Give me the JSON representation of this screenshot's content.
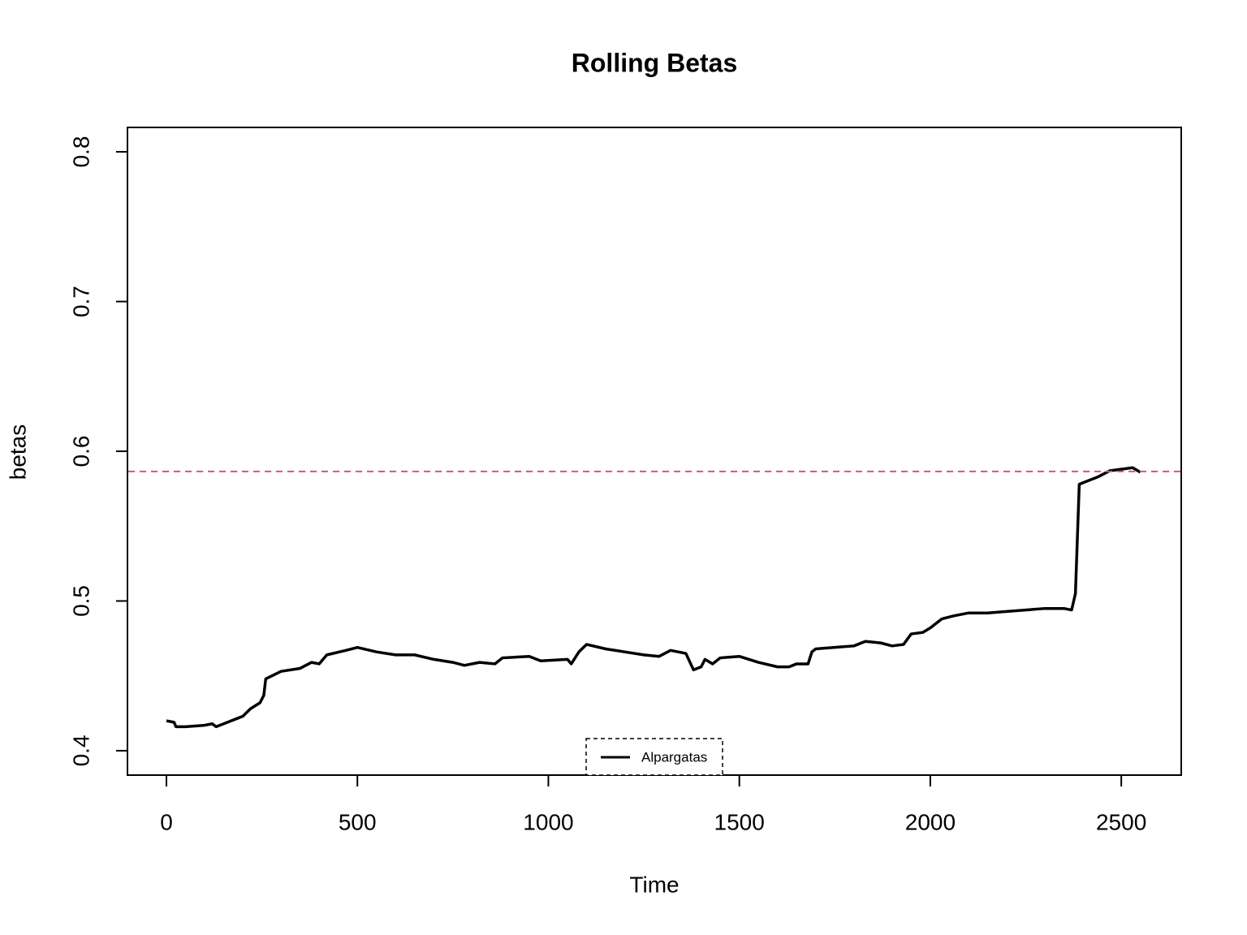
{
  "chart_data": {
    "type": "line",
    "title": "Rolling Betas",
    "xlabel": "Time",
    "ylabel": "betas",
    "xlim": [
      -102,
      2657
    ],
    "ylim": [
      0.3837,
      0.8163
    ],
    "xticks": [
      0,
      500,
      1000,
      1500,
      2000,
      2500
    ],
    "yticks": [
      0.4,
      0.5,
      0.6,
      0.7,
      0.8
    ],
    "x": [
      0,
      20,
      25,
      50,
      100,
      120,
      130,
      150,
      180,
      200,
      220,
      245,
      255,
      260,
      300,
      350,
      380,
      400,
      420,
      470,
      500,
      550,
      600,
      650,
      700,
      750,
      780,
      820,
      860,
      880,
      950,
      980,
      1050,
      1060,
      1080,
      1100,
      1150,
      1200,
      1250,
      1290,
      1320,
      1360,
      1380,
      1400,
      1410,
      1430,
      1450,
      1500,
      1550,
      1600,
      1630,
      1650,
      1680,
      1690,
      1700,
      1750,
      1800,
      1830,
      1870,
      1900,
      1930,
      1950,
      1980,
      2000,
      2030,
      2060,
      2100,
      2150,
      2200,
      2300,
      2350,
      2370,
      2380,
      2390,
      2410,
      2440,
      2470,
      2500,
      2530,
      2550
    ],
    "series": [
      {
        "name": "Alpargatas",
        "color": "#000000",
        "values": [
          0.42,
          0.419,
          0.416,
          0.416,
          0.417,
          0.418,
          0.416,
          0.418,
          0.421,
          0.423,
          0.428,
          0.432,
          0.437,
          0.448,
          0.453,
          0.455,
          0.459,
          0.458,
          0.464,
          0.467,
          0.469,
          0.466,
          0.464,
          0.464,
          0.461,
          0.459,
          0.457,
          0.459,
          0.458,
          0.462,
          0.463,
          0.46,
          0.461,
          0.458,
          0.466,
          0.471,
          0.468,
          0.466,
          0.464,
          0.463,
          0.467,
          0.465,
          0.454,
          0.456,
          0.461,
          0.458,
          0.462,
          0.463,
          0.459,
          0.456,
          0.456,
          0.458,
          0.458,
          0.466,
          0.468,
          0.469,
          0.47,
          0.473,
          0.472,
          0.47,
          0.471,
          0.478,
          0.479,
          0.482,
          0.488,
          0.49,
          0.492,
          0.492,
          0.493,
          0.495,
          0.495,
          0.494,
          0.505,
          0.578,
          0.58,
          0.583,
          0.587,
          0.588,
          0.589,
          0.586
        ]
      }
    ],
    "hline": 0.5865,
    "hline_color": "#DF536B"
  }
}
